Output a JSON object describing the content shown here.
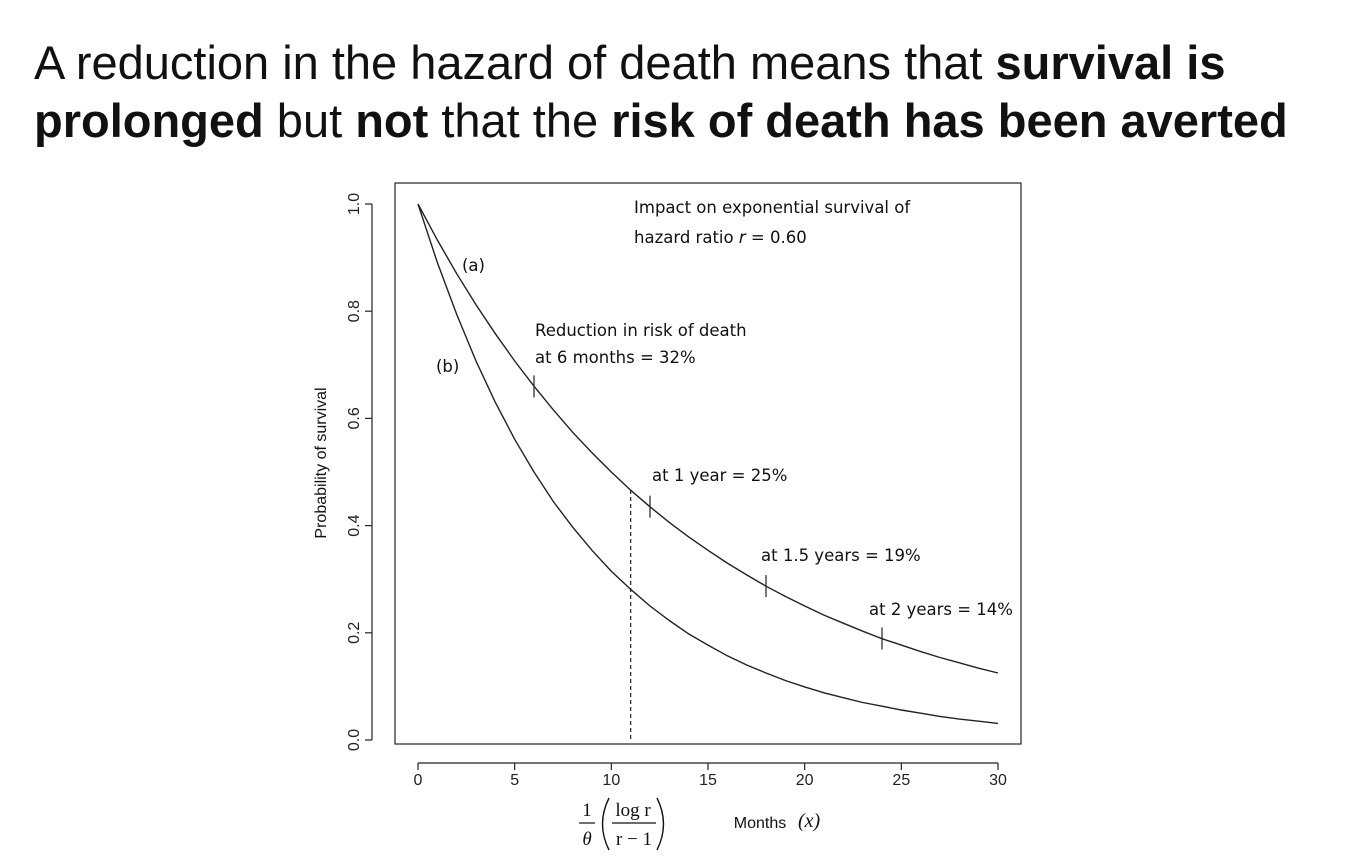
{
  "title": {
    "segments": [
      {
        "text": "A reduction in the hazard of death means that ",
        "bold": false
      },
      {
        "text": "survival is",
        "bold": true
      },
      {
        "text": "\n",
        "bold": false
      },
      {
        "text": "prolonged",
        "bold": true
      },
      {
        "text": " but ",
        "bold": false
      },
      {
        "text": "not",
        "bold": true
      },
      {
        "text": " that the ",
        "bold": false
      },
      {
        "text": "risk of death has been averted",
        "bold": true
      }
    ]
  },
  "chart_data": {
    "type": "line",
    "title_lines": [
      "Impact on exponential survival of",
      "hazard ratio ",
      "r",
      " = 0.60"
    ],
    "xlabel": "Months",
    "xlabel_var": "(x)",
    "ylabel": "Probability of survival",
    "xlim": [
      0,
      30
    ],
    "ylim": [
      0,
      1
    ],
    "x_ticks": [
      0,
      5,
      10,
      15,
      20,
      25,
      30
    ],
    "x_tick_labels": [
      "0",
      "5",
      "10",
      "15",
      "20",
      "25",
      "30"
    ],
    "y_ticks": [
      0.0,
      0.2,
      0.4,
      0.6,
      0.8,
      1.0
    ],
    "y_tick_labels": [
      "0.0",
      "0.2",
      "0.4",
      "0.6",
      "0.8",
      "1.0"
    ],
    "hazard_ratio": 0.6,
    "x": [
      0,
      1,
      2,
      3,
      4,
      5,
      6,
      7,
      8,
      9,
      10,
      11,
      12,
      13,
      14,
      15,
      16,
      17,
      18,
      19,
      20,
      21,
      22,
      23,
      24,
      25,
      26,
      27,
      28,
      29,
      30
    ],
    "series": [
      {
        "name": "(a)",
        "values": [
          1.0,
          0.933,
          0.87,
          0.812,
          0.758,
          0.707,
          0.66,
          0.616,
          0.574,
          0.536,
          0.5,
          0.466,
          0.435,
          0.406,
          0.379,
          0.354,
          0.33,
          0.308,
          0.287,
          0.268,
          0.25,
          0.233,
          0.218,
          0.203,
          0.189,
          0.177,
          0.165,
          0.154,
          0.144,
          0.134,
          0.125
        ]
      },
      {
        "name": "(b)",
        "values": [
          1.0,
          0.891,
          0.794,
          0.707,
          0.63,
          0.561,
          0.5,
          0.445,
          0.397,
          0.354,
          0.315,
          0.281,
          0.25,
          0.223,
          0.198,
          0.177,
          0.157,
          0.14,
          0.125,
          0.111,
          0.099,
          0.088,
          0.079,
          0.07,
          0.063,
          0.056,
          0.05,
          0.044,
          0.039,
          0.035,
          0.031
        ]
      }
    ],
    "vertical_line_x": 11.0,
    "tick_marks": [
      {
        "x": 6,
        "label_lines": [
          "Reduction in risk of death",
          "at 6 months = 32%"
        ]
      },
      {
        "x": 12,
        "label_lines": [
          "at 1 year = 25%"
        ]
      },
      {
        "x": 18,
        "label_lines": [
          "at 1.5 years = 19%"
        ]
      },
      {
        "x": 24,
        "label_lines": [
          "at 2 years = 14%"
        ]
      }
    ],
    "formula": {
      "numerator_1": "1",
      "denominator_1": "θ",
      "numerator_2": "log r",
      "denominator_2": "r − 1"
    }
  }
}
